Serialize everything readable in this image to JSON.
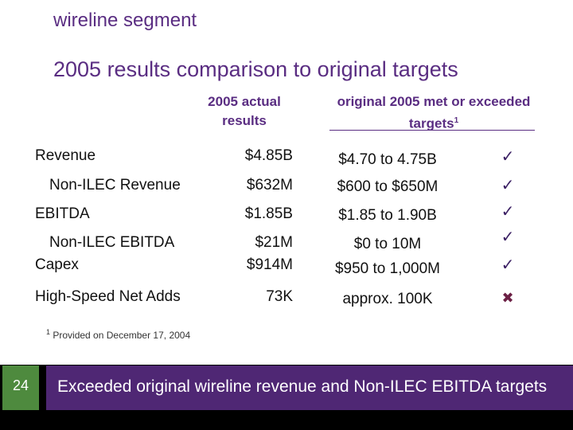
{
  "segment": "wireline segment",
  "title": "2005 results comparison to original targets",
  "columns": {
    "actual_line1": "2005 actual",
    "actual_line2": "results",
    "target_line1": "original 2005 met or exceeded",
    "target_line2": "targets",
    "target_sup": "1"
  },
  "rows": [
    {
      "label": "Revenue",
      "actual": "$4.85B",
      "target": "$4.70 to 4.75B",
      "mark": "✓"
    },
    {
      "label": "Non-ILEC Revenue",
      "actual": "$632M",
      "target": "$600 to $650M",
      "mark": "✓"
    },
    {
      "label": "EBITDA",
      "actual": "$1.85B",
      "target": "$1.85 to 1.90B",
      "mark": "✓"
    },
    {
      "label": "Non-ILEC EBITDA",
      "actual": "$21M",
      "target": "$0 to 10M",
      "mark": "✓"
    },
    {
      "label": "Capex",
      "actual": "$914M",
      "target": "$950 to 1,000M",
      "mark": "✓"
    },
    {
      "label": "High-Speed Net Adds",
      "actual": "73K",
      "target": "approx. 100K",
      "mark": "✖"
    }
  ],
  "footnote": {
    "marker": "1",
    "text": "Provided on December 17, 2004"
  },
  "page_number": "24",
  "banner_text": "Exceeded original wireline revenue and Non-ILEC EBITDA targets",
  "colors": {
    "accent": "#5a2d82",
    "banner": "#4f2774",
    "page_box": "#4e8a3e"
  }
}
